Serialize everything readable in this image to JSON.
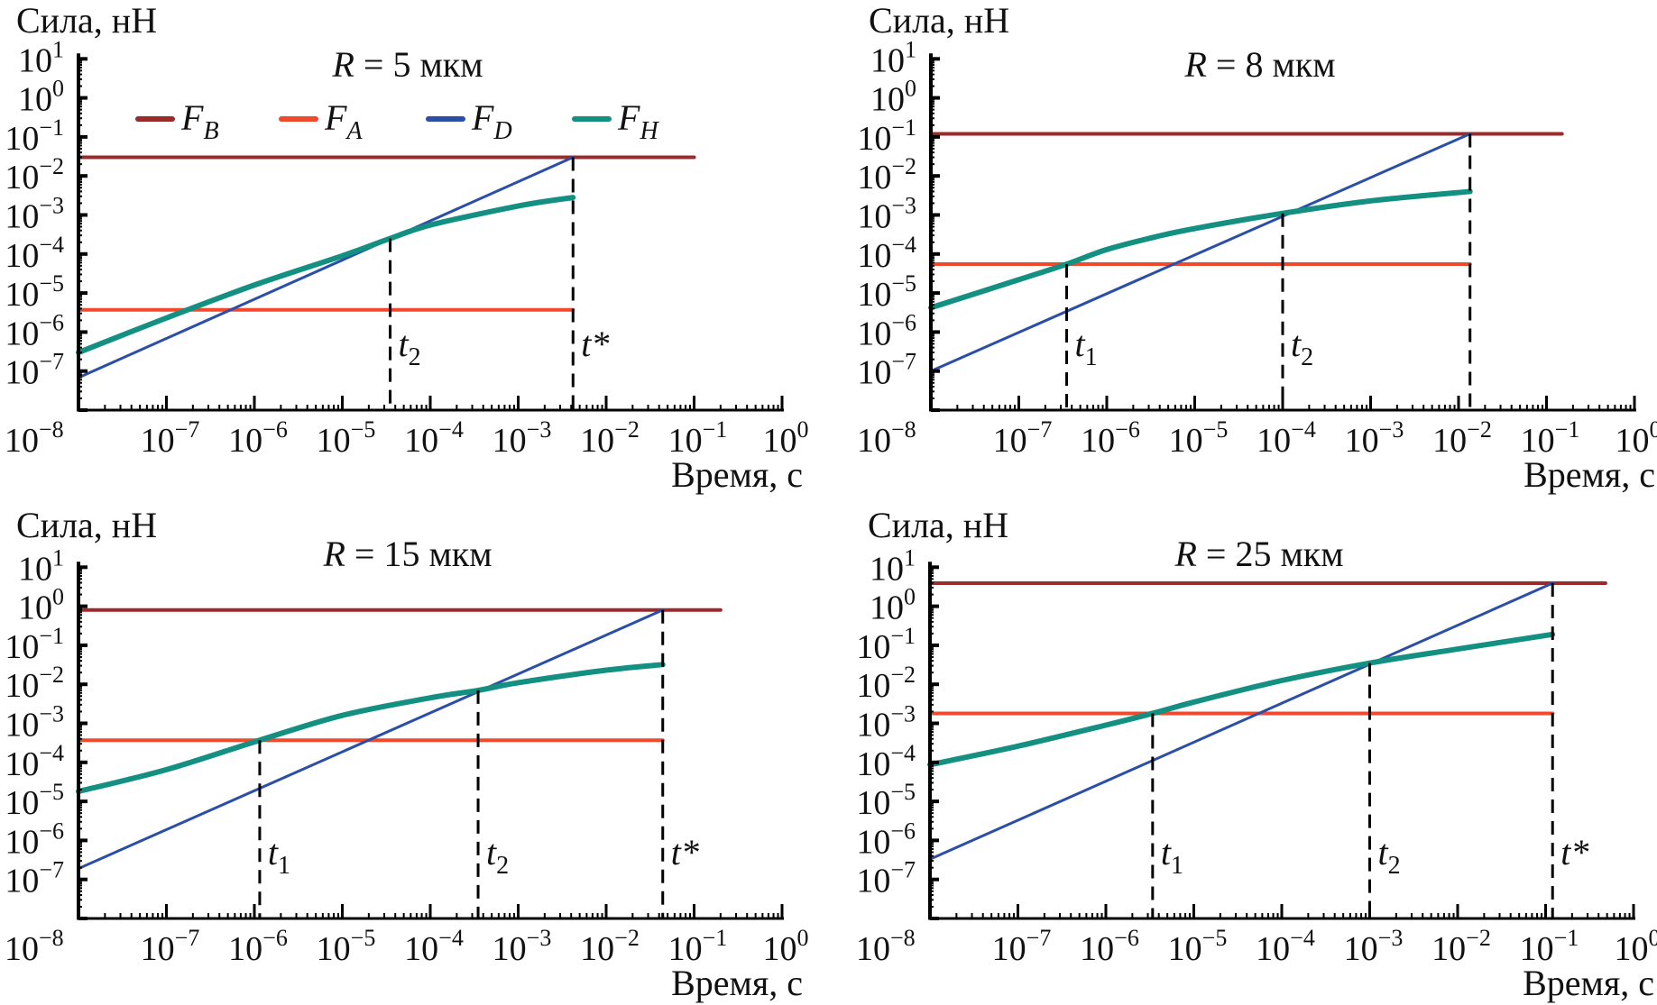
{
  "chart_data": [
    {
      "type": "line",
      "title_var": "R",
      "title_rest": "= 5 мкм",
      "ylabel": "Сила, нН",
      "xlabel": "Время, с",
      "xscale": "log",
      "yscale": "log",
      "xlim": [
        1e-08,
        1
      ],
      "ylim": [
        1e-08,
        10
      ],
      "grid": false,
      "legend_placement": "top",
      "legend": [
        {
          "symbol": "F",
          "sub": "B",
          "color": "#9b2b2b"
        },
        {
          "symbol": "F",
          "sub": "A",
          "color": "#f0492b"
        },
        {
          "symbol": "F",
          "sub": "D",
          "color": "#2b4ea6"
        },
        {
          "symbol": "F",
          "sub": "H",
          "color": "#139082"
        }
      ],
      "series": [
        {
          "name": "F_B",
          "color": "#9b2b2b",
          "points": [
            [
              1e-08,
              0.03
            ],
            [
              0.1,
              0.03
            ]
          ]
        },
        {
          "name": "F_A",
          "color": "#f0492b",
          "points": [
            [
              1e-08,
              3.7e-06
            ],
            [
              0.0042,
              3.7e-06
            ]
          ]
        },
        {
          "name": "F_D",
          "color": "#2b4ea6",
          "points": [
            [
              1e-08,
              6.8e-08
            ],
            [
              0.0042,
              0.03
            ]
          ]
        },
        {
          "name": "F_H",
          "color": "#139082",
          "points": [
            [
              1e-08,
              3e-07
            ],
            [
              1e-07,
              2.3e-06
            ],
            [
              1e-06,
              1.6e-05
            ],
            [
              1e-05,
              9e-05
            ],
            [
              3.5e-05,
              0.00025
            ],
            [
              0.0001,
              0.00055
            ],
            [
              0.001,
              0.0017
            ],
            [
              0.0042,
              0.0028
            ]
          ]
        }
      ],
      "markers": [
        {
          "symbol": "t",
          "sub": "2",
          "t": 3.5e-05,
          "top": 0.00025
        },
        {
          "symbol": "t*",
          "sub": "",
          "t": 0.0042,
          "top": 0.03
        }
      ]
    },
    {
      "type": "line",
      "title_var": "R",
      "title_rest": "= 8 мкм",
      "ylabel": "Сила, нН",
      "xlabel": "Время, с",
      "xscale": "log",
      "yscale": "log",
      "xlim": [
        1e-08,
        1
      ],
      "ylim": [
        1e-08,
        10
      ],
      "grid": false,
      "series": [
        {
          "name": "F_B",
          "color": "#9b2b2b",
          "points": [
            [
              1e-08,
              0.12
            ],
            [
              0.15,
              0.12
            ]
          ]
        },
        {
          "name": "F_A",
          "color": "#f0492b",
          "points": [
            [
              1e-08,
              5.5e-05
            ],
            [
              0.0135,
              5.5e-05
            ]
          ]
        },
        {
          "name": "F_D",
          "color": "#2b4ea6",
          "points": [
            [
              1e-08,
              1e-07
            ],
            [
              0.0135,
              0.12
            ]
          ]
        },
        {
          "name": "F_H",
          "color": "#139082",
          "points": [
            [
              1e-08,
              4.2e-06
            ],
            [
              1e-07,
              2.2e-05
            ],
            [
              3.5e-07,
              5.5e-05
            ],
            [
              1e-06,
              0.00013
            ],
            [
              3.7e-06,
              0.00028
            ],
            [
              1e-05,
              0.00045
            ],
            [
              0.0001,
              0.0011
            ],
            [
              0.001,
              0.0023
            ],
            [
              0.0135,
              0.004
            ]
          ]
        }
      ],
      "markers": [
        {
          "symbol": "t",
          "sub": "1",
          "t": 3.5e-07,
          "top": 5.5e-05
        },
        {
          "symbol": "t",
          "sub": "2",
          "t": 0.0001,
          "top": 0.0011
        },
        {
          "symbol": "",
          "sub": "",
          "t": 0.0135,
          "top": 0.12
        }
      ]
    },
    {
      "type": "line",
      "title_var": "R",
      "title_rest": "= 15 мкм",
      "ylabel": "Сила, нН",
      "xlabel": "Время, с",
      "xscale": "log",
      "yscale": "log",
      "xlim": [
        1e-08,
        1
      ],
      "ylim": [
        1e-08,
        10
      ],
      "grid": false,
      "series": [
        {
          "name": "F_B",
          "color": "#9b2b2b",
          "points": [
            [
              1e-08,
              0.8
            ],
            [
              0.2,
              0.8
            ]
          ]
        },
        {
          "name": "F_A",
          "color": "#f0492b",
          "points": [
            [
              1e-08,
              0.00037
            ],
            [
              0.044,
              0.00037
            ]
          ]
        },
        {
          "name": "F_D",
          "color": "#2b4ea6",
          "points": [
            [
              1e-08,
              1.9e-07
            ],
            [
              0.044,
              0.8
            ]
          ]
        },
        {
          "name": "F_H",
          "color": "#139082",
          "points": [
            [
              1e-08,
              1.8e-05
            ],
            [
              1e-07,
              6.5e-05
            ],
            [
              1.15e-06,
              0.00037
            ],
            [
              1e-05,
              0.0016
            ],
            [
              0.0001,
              0.0045
            ],
            [
              0.00035,
              0.007
            ],
            [
              0.001,
              0.011
            ],
            [
              0.01,
              0.023
            ],
            [
              0.044,
              0.032
            ]
          ]
        }
      ],
      "markers": [
        {
          "symbol": "t",
          "sub": "1",
          "t": 1.15e-06,
          "top": 0.00037
        },
        {
          "symbol": "t",
          "sub": "2",
          "t": 0.00035,
          "top": 0.007
        },
        {
          "symbol": "t*",
          "sub": "",
          "t": 0.044,
          "top": 0.8
        }
      ]
    },
    {
      "type": "line",
      "title_var": "R",
      "title_rest": "= 25 мкм",
      "ylabel": "Сила, нН",
      "xlabel": "Время, с",
      "xscale": "log",
      "yscale": "log",
      "xlim": [
        1e-08,
        1
      ],
      "ylim": [
        1e-08,
        10
      ],
      "grid": false,
      "series": [
        {
          "name": "F_B",
          "color": "#9b2b2b",
          "points": [
            [
              1e-08,
              3.9
            ],
            [
              0.48,
              3.9
            ]
          ]
        },
        {
          "name": "F_A",
          "color": "#f0492b",
          "points": [
            [
              1e-08,
              0.0018
            ],
            [
              0.12,
              0.0018
            ]
          ]
        },
        {
          "name": "F_D",
          "color": "#2b4ea6",
          "points": [
            [
              1e-08,
              3.3e-07
            ],
            [
              0.12,
              3.9
            ]
          ]
        },
        {
          "name": "F_H",
          "color": "#139082",
          "points": [
            [
              1e-08,
              8.7e-05
            ],
            [
              1e-07,
              0.00026
            ],
            [
              1e-06,
              0.0009
            ],
            [
              3.4e-06,
              0.0018
            ],
            [
              1e-05,
              0.0035
            ],
            [
              0.0001,
              0.0125
            ],
            [
              0.001,
              0.035
            ],
            [
              0.01,
              0.08
            ],
            [
              0.12,
              0.19
            ]
          ]
        }
      ],
      "markers": [
        {
          "symbol": "t",
          "sub": "1",
          "t": 3.4e-06,
          "top": 0.0018
        },
        {
          "symbol": "t",
          "sub": "2",
          "t": 0.001,
          "top": 0.035
        },
        {
          "symbol": "t*",
          "sub": "",
          "t": 0.12,
          "top": 3.9
        }
      ]
    }
  ],
  "axes": {
    "tick_base": "10",
    "y_tick_exponents": [
      "1",
      "0",
      "−1",
      "−2",
      "−3",
      "−4",
      "−5",
      "−6",
      "−7"
    ],
    "x_tick_exponents": [
      "−7",
      "−6",
      "−5",
      "−4",
      "−3",
      "−2",
      "−1",
      "0"
    ],
    "corner_exponent": "−8"
  }
}
